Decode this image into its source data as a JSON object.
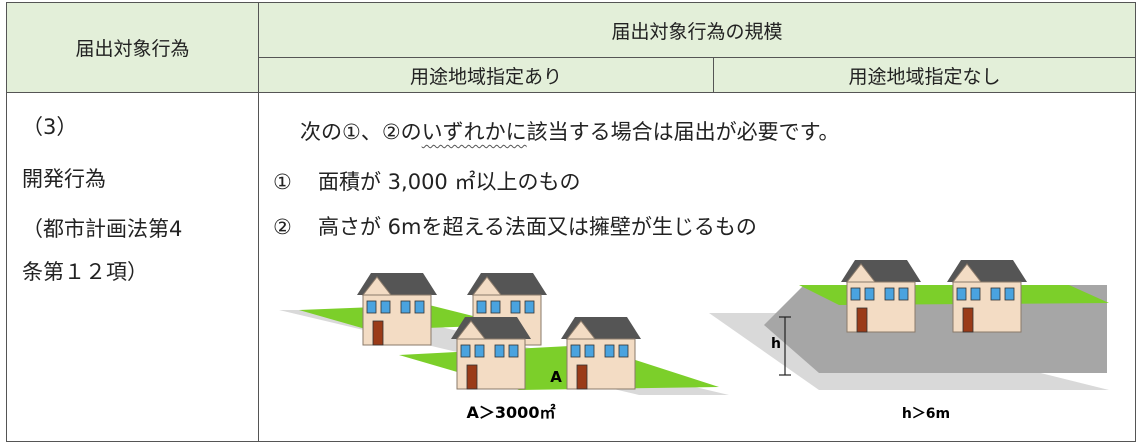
{
  "table": {
    "header": {
      "action": "届出対象行為",
      "scale": "届出対象行為の規模",
      "with_zoning": "用途地域指定あり",
      "without_zoning": "用途地域指定なし"
    },
    "rows": [
      {
        "item": [
          "（3）",
          "開発行為",
          "（都市計画法第4",
          "条第１２項）"
        ],
        "lead": [
          "次の①、②の",
          "いずれかに",
          "該当する場合は届出が必要です。"
        ],
        "conditions": [
          {
            "marker": "①",
            "text": "面積が 3,000 ㎡以上のもの"
          },
          {
            "marker": "②",
            "text": "高さが 6mを超える法面又は擁壁が生じるもの"
          }
        ],
        "figures": [
          {
            "label": "A",
            "caption": "A＞3000㎡"
          },
          {
            "label": "h",
            "caption": "h＞6m"
          }
        ]
      }
    ]
  }
}
